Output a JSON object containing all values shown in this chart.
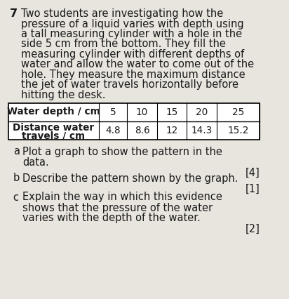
{
  "question_number": "7",
  "intro_lines": [
    "Two students are investigating how the",
    "pressure of a liquid varies with depth using",
    "a tall measuring cylinder with a hole in the",
    "side 5 cm from the bottom. They fill the",
    "measuring cylinder with different depths of",
    "water and allow the water to come out of the",
    "hole. They measure the maximum distance",
    "the jet of water travels horizontally before",
    "hitting the desk."
  ],
  "table_header": [
    "Water depth / cm",
    "5",
    "10",
    "15",
    "20",
    "25"
  ],
  "table_row_label_line1": "Distance water",
  "table_row_label_line2": "travels / cm",
  "table_values": [
    "4.8",
    "8.6",
    "12",
    "14.3",
    "15.2"
  ],
  "q_a_label": "a",
  "q_a_line1": "Plot a graph to show the pattern in the",
  "q_a_line2": "data.",
  "q_a_mark": "[4]",
  "q_b_label": "b",
  "q_b_text": "Describe the pattern shown by the graph.",
  "q_b_mark": "[1]",
  "q_c_label": "c",
  "q_c_line1": "Explain the way in which this evidence",
  "q_c_line2": "shows that the pressure of the water",
  "q_c_line3": "varies with the depth of the water.",
  "q_c_mark": "[2]",
  "bg_color": "#e8e4de",
  "text_color": "#1a1a1a",
  "font_size_body": 10.5,
  "font_size_table": 9.8,
  "font_size_qnum": 11.5
}
